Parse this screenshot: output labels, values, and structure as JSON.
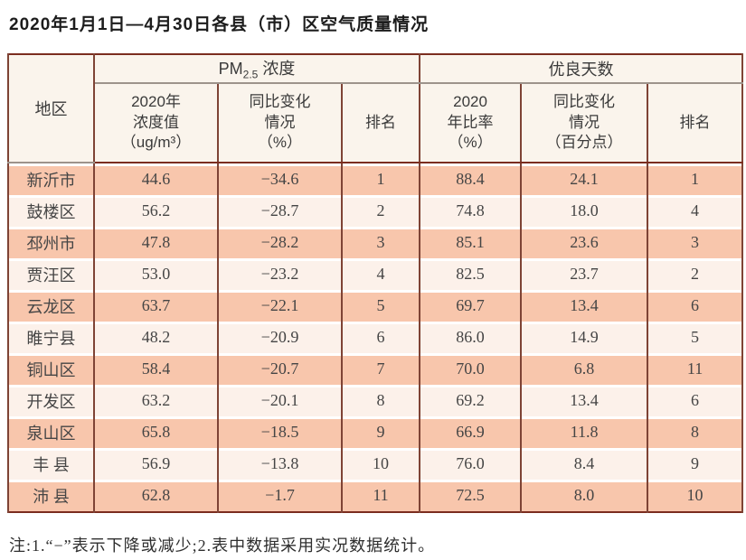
{
  "title": "2020年1月1日—4月30日各县（市）区空气质量情况",
  "table": {
    "region_header": "地区",
    "group_pm": {
      "pre": "PM",
      "sub": "2.5",
      "post": " 浓度"
    },
    "group_good": "优良天数",
    "sub_headers": {
      "pm_value": "2020年\n浓度值\n（ug/m³）",
      "pm_change": "同比变化\n情况\n（%）",
      "pm_rank": "排名",
      "good_ratio": "2020\n年比率\n（%）",
      "good_change": "同比变化\n情况\n（百分点）",
      "good_rank": "排名"
    },
    "rows": [
      {
        "region": "新沂市",
        "values": [
          "44.6",
          "−34.6",
          "1",
          "88.4",
          "24.1",
          "1"
        ]
      },
      {
        "region": "鼓楼区",
        "values": [
          "56.2",
          "−28.7",
          "2",
          "74.8",
          "18.0",
          "4"
        ]
      },
      {
        "region": "邳州市",
        "values": [
          "47.8",
          "−28.2",
          "3",
          "85.1",
          "23.6",
          "3"
        ]
      },
      {
        "region": "贾汪区",
        "values": [
          "53.0",
          "−23.2",
          "4",
          "82.5",
          "23.7",
          "2"
        ]
      },
      {
        "region": "云龙区",
        "values": [
          "63.7",
          "−22.1",
          "5",
          "69.7",
          "13.4",
          "6"
        ]
      },
      {
        "region": "睢宁县",
        "values": [
          "48.2",
          "−20.9",
          "6",
          "86.0",
          "14.9",
          "5"
        ]
      },
      {
        "region": "铜山区",
        "values": [
          "58.4",
          "−20.7",
          "7",
          "70.0",
          "6.8",
          "11"
        ]
      },
      {
        "region": "开发区",
        "values": [
          "63.2",
          "−20.1",
          "8",
          "69.2",
          "13.4",
          "6"
        ]
      },
      {
        "region": "泉山区",
        "values": [
          "65.8",
          "−18.5",
          "9",
          "66.9",
          "11.8",
          "8"
        ]
      },
      {
        "region": "丰 县",
        "values": [
          "56.9",
          "−13.8",
          "10",
          "76.0",
          "8.4",
          "9"
        ]
      },
      {
        "region": "沛 县",
        "values": [
          "62.8",
          "−1.7",
          "11",
          "72.5",
          "8.0",
          "10"
        ]
      }
    ]
  },
  "note": "注:1.“−”表示下降或减少;2.表中数据采用实况数据统计。",
  "colors": {
    "outer_border": "#7b2d1f",
    "inner_line": "#7e4335",
    "gray_line": "#9d938b",
    "row_salmon": "#f8c6ac",
    "row_light": "#fcf1ea",
    "header_bg": "#faf4ec",
    "text": "#454545"
  },
  "chart_data": {
    "type": "table",
    "title": "2020年1月1日—4月30日各县（市）区空气质量情况",
    "column_groups": [
      "地区",
      "PM2.5浓度",
      "优良天数"
    ],
    "columns": [
      "地区",
      "2020年浓度值（ug/m³）",
      "同比变化情况（%）",
      "排名",
      "2020年比率（%）",
      "同比变化情况（百分点）",
      "排名"
    ],
    "rows": [
      [
        "新沂市",
        44.6,
        -34.6,
        1,
        88.4,
        24.1,
        1
      ],
      [
        "鼓楼区",
        56.2,
        -28.7,
        2,
        74.8,
        18.0,
        4
      ],
      [
        "邳州市",
        47.8,
        -28.2,
        3,
        85.1,
        23.6,
        3
      ],
      [
        "贾汪区",
        53.0,
        -23.2,
        4,
        82.5,
        23.7,
        2
      ],
      [
        "云龙区",
        63.7,
        -22.1,
        5,
        69.7,
        13.4,
        6
      ],
      [
        "睢宁县",
        48.2,
        -20.9,
        6,
        86.0,
        14.9,
        5
      ],
      [
        "铜山区",
        58.4,
        -20.7,
        7,
        70.0,
        6.8,
        11
      ],
      [
        "开发区",
        63.2,
        -20.1,
        8,
        69.2,
        13.4,
        6
      ],
      [
        "泉山区",
        65.8,
        -18.5,
        9,
        66.9,
        11.8,
        8
      ],
      [
        "丰县",
        56.9,
        -13.8,
        10,
        76.0,
        8.4,
        9
      ],
      [
        "沛县",
        62.8,
        -1.7,
        11,
        72.5,
        8.0,
        10
      ]
    ],
    "note": "注:1.“−”表示下降或减少;2.表中数据采用实况数据统计。"
  }
}
